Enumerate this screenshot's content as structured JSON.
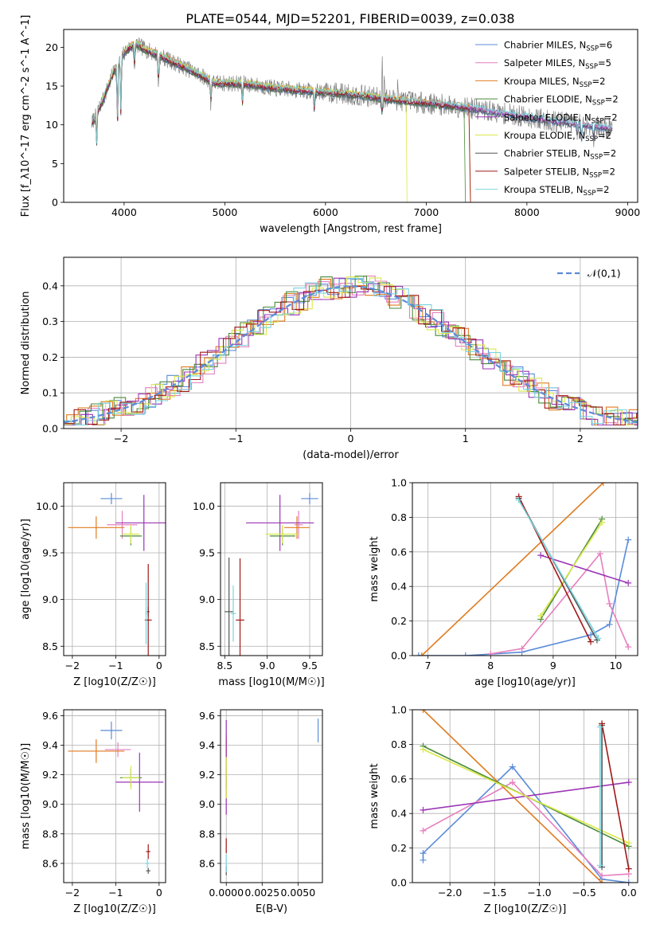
{
  "chart_data": [
    {
      "id": "spectrum",
      "type": "line",
      "title": "PLATE=0544, MJD=52201, FIBERID=0039, z=0.038",
      "xlabel": "wavelength [Angstrom, rest frame]",
      "ylabel": "Flux [f_λ10^-17 erg cm^-2 s^-1 A^-1]",
      "xlim": [
        3400,
        9100
      ],
      "ylim": [
        0,
        22.3
      ],
      "xticks": [
        4000,
        5000,
        6000,
        7000,
        8000,
        9000
      ],
      "yticks": [
        0,
        5,
        10,
        15,
        20
      ],
      "grid": false,
      "legend_placement": "top-right",
      "legend": [
        {
          "name": "Chabrier MILES",
          "nssp": "6",
          "color": "#5b8bd8"
        },
        {
          "name": "Salpeter MILES",
          "nssp": "5",
          "color": "#e67fbf"
        },
        {
          "name": "Kroupa MILES",
          "nssp": "2",
          "color": "#e07b20"
        },
        {
          "name": "Chabrier ELODIE",
          "nssp": "2",
          "color": "#4a8a3a"
        },
        {
          "name": "Salpeter ELODIE",
          "nssp": "2",
          "color": "#9b35b5"
        },
        {
          "name": "Kroupa ELODIE",
          "nssp": "2",
          "color": "#d9e84a"
        },
        {
          "name": "Chabrier STELIB",
          "nssp": "2",
          "color": "#555555"
        },
        {
          "name": "Salpeter STELIB",
          "nssp": "2",
          "color": "#a01818"
        },
        {
          "name": "Kroupa STELIB",
          "nssp": "2",
          "color": "#79d4dd"
        }
      ],
      "data_color": "#808080",
      "continuum": {
        "x": [
          3680,
          3800,
          3900,
          4000,
          4100,
          4200,
          4300,
          4500,
          4700,
          4900,
          5200,
          5500,
          5800,
          6100,
          6400,
          6700,
          7000,
          7300,
          7600,
          7900,
          8200,
          8500,
          8850
        ],
        "y": [
          10.2,
          13.5,
          17.0,
          19.3,
          20.5,
          19.8,
          19.2,
          18.0,
          16.8,
          15.4,
          15.3,
          14.7,
          14.4,
          14.1,
          13.7,
          13.2,
          12.8,
          12.4,
          11.8,
          11.2,
          10.6,
          10.1,
          9.5
        ]
      }
    },
    {
      "id": "residuals",
      "type": "histogram",
      "xlabel": "(data-model)/error",
      "ylabel": "Normed distribution",
      "xlim": [
        -2.5,
        2.5
      ],
      "ylim": [
        0,
        0.48
      ],
      "xticks": [
        -2,
        -1,
        0,
        1,
        2
      ],
      "yticks": [
        0.0,
        0.1,
        0.2,
        0.3,
        0.4
      ],
      "grid": true,
      "legend_placement": "top-right",
      "reference": {
        "label": "𝒩(0,1)",
        "mean": 0,
        "sigma": 1,
        "color": "#5b8bd8"
      }
    },
    {
      "id": "age_vs_Z",
      "type": "errorbar",
      "xlabel": "Z [log10(Z/Z☉)]",
      "ylabel": "age [log10(age/yr)]",
      "xlim": [
        -2.2,
        0.15
      ],
      "ylim": [
        8.4,
        10.25
      ],
      "xticks": [
        -2,
        -1,
        0
      ],
      "yticks": [
        8.5,
        9.0,
        9.5,
        10.0
      ],
      "grid": true,
      "points": [
        {
          "model": "Chabrier MILES",
          "x": -1.1,
          "y": 10.08,
          "xerr": 0.25,
          "yerr": 0.06
        },
        {
          "model": "Salpeter MILES",
          "x": -0.85,
          "y": 9.8,
          "xerr": 0.35,
          "yerr": 0.15
        },
        {
          "model": "Kroupa MILES",
          "x": -1.45,
          "y": 9.77,
          "xerr": 0.65,
          "yerr": 0.12
        },
        {
          "model": "Chabrier ELODIE",
          "x": -0.65,
          "y": 9.68,
          "xerr": 0.25,
          "yerr": 0.1
        },
        {
          "model": "Salpeter ELODIE",
          "x": -0.35,
          "y": 9.82,
          "xerr": 0.65,
          "yerr": 0.3
        },
        {
          "model": "Kroupa ELODIE",
          "x": -0.65,
          "y": 9.7,
          "xerr": 0.2,
          "yerr": 0.1
        },
        {
          "model": "Chabrier STELIB",
          "x": -0.25,
          "y": 8.87,
          "xerr": 0.03,
          "yerr": 0.05
        },
        {
          "model": "Salpeter STELIB",
          "x": -0.25,
          "y": 8.78,
          "xerr": 0.08,
          "yerr": 0.6
        },
        {
          "model": "Kroupa STELIB",
          "x": -0.3,
          "y": 8.85,
          "xerr": 0.02,
          "yerr": 0.33
        }
      ]
    },
    {
      "id": "age_vs_mass",
      "type": "errorbar",
      "xlabel": "mass [log10(M/M☉)]",
      "ylabel": "",
      "xlim": [
        8.45,
        9.65
      ],
      "ylim": [
        8.4,
        10.25
      ],
      "xticks": [
        8.5,
        9.0,
        9.5
      ],
      "yticks": [
        8.5,
        9.0,
        9.5,
        10.0
      ],
      "grid": true,
      "points": [
        {
          "model": "Chabrier MILES",
          "x": 9.5,
          "y": 10.08,
          "xerr": 0.1,
          "yerr": 0.06
        },
        {
          "model": "Salpeter MILES",
          "x": 9.37,
          "y": 9.8,
          "xerr": 0.05,
          "yerr": 0.15
        },
        {
          "model": "Kroupa MILES",
          "x": 9.35,
          "y": 9.77,
          "xerr": 0.15,
          "yerr": 0.12
        },
        {
          "model": "Chabrier ELODIE",
          "x": 9.18,
          "y": 9.68,
          "xerr": 0.15,
          "yerr": 0.1
        },
        {
          "model": "Salpeter ELODIE",
          "x": 9.15,
          "y": 9.82,
          "xerr": 0.4,
          "yerr": 0.3
        },
        {
          "model": "Kroupa ELODIE",
          "x": 9.18,
          "y": 9.7,
          "xerr": 0.2,
          "yerr": 0.1
        },
        {
          "model": "Chabrier STELIB",
          "x": 8.55,
          "y": 8.87,
          "xerr": 0.05,
          "yerr": 0.58
        },
        {
          "model": "Salpeter STELIB",
          "x": 8.68,
          "y": 8.78,
          "xerr": 0.05,
          "yerr": 0.66
        },
        {
          "model": "Kroupa STELIB",
          "x": 8.6,
          "y": 8.85,
          "xerr": 0.03,
          "yerr": 0.3
        }
      ]
    },
    {
      "id": "weight_vs_age",
      "type": "line",
      "xlabel": "age [log10(age/yr)]",
      "ylabel": "mass weight",
      "xlim": [
        6.75,
        10.35
      ],
      "ylim": [
        0,
        1.0
      ],
      "xticks": [
        7,
        8,
        9,
        10
      ],
      "yticks": [
        0.0,
        0.2,
        0.4,
        0.6,
        0.8,
        1.0
      ],
      "grid": true,
      "series": [
        {
          "model": "Chabrier MILES",
          "x": [
            6.85,
            7.6,
            8.5,
            9.6,
            9.9,
            10.2
          ],
          "y": [
            0.0,
            0.0,
            0.02,
            0.12,
            0.18,
            0.67
          ]
        },
        {
          "model": "Salpeter MILES",
          "x": [
            8.0,
            8.5,
            9.75,
            9.9,
            10.2
          ],
          "y": [
            0.01,
            0.04,
            0.59,
            0.3,
            0.05
          ]
        },
        {
          "model": "Kroupa MILES",
          "x": [
            6.9,
            9.8
          ],
          "y": [
            0.0,
            1.0
          ]
        },
        {
          "model": "Chabrier ELODIE",
          "x": [
            8.8,
            9.78
          ],
          "y": [
            0.21,
            0.79
          ]
        },
        {
          "model": "Salpeter ELODIE",
          "x": [
            8.8,
            10.2
          ],
          "y": [
            0.58,
            0.42
          ]
        },
        {
          "model": "Kroupa ELODIE",
          "x": [
            8.8,
            9.78
          ],
          "y": [
            0.23,
            0.77
          ]
        },
        {
          "model": "Chabrier STELIB",
          "x": [
            8.45,
            9.7
          ],
          "y": [
            0.91,
            0.09
          ]
        },
        {
          "model": "Salpeter STELIB",
          "x": [
            8.45,
            9.6
          ],
          "y": [
            0.92,
            0.08
          ]
        },
        {
          "model": "Kroupa STELIB",
          "x": [
            8.45,
            9.72
          ],
          "y": [
            0.9,
            0.1
          ]
        }
      ]
    },
    {
      "id": "mass_vs_Z",
      "type": "errorbar",
      "xlabel": "Z [log10(Z/Z☉)]",
      "ylabel": "mass [log10(M/M☉)]",
      "xlim": [
        -2.2,
        0.15
      ],
      "ylim": [
        8.47,
        9.64
      ],
      "xticks": [
        -2,
        -1,
        0
      ],
      "yticks": [
        8.6,
        8.8,
        9.0,
        9.2,
        9.4,
        9.6
      ],
      "grid": true,
      "points": [
        {
          "model": "Chabrier MILES",
          "x": -1.1,
          "y": 9.5,
          "xerr": 0.25,
          "yerr": 0.06
        },
        {
          "model": "Salpeter MILES",
          "x": -0.95,
          "y": 9.37,
          "xerr": 0.3,
          "yerr": 0.05
        },
        {
          "model": "Kroupa MILES",
          "x": -1.45,
          "y": 9.36,
          "xerr": 0.65,
          "yerr": 0.08
        },
        {
          "model": "Chabrier ELODIE",
          "x": -0.65,
          "y": 9.18,
          "xerr": 0.25,
          "yerr": 0.06
        },
        {
          "model": "Salpeter ELODIE",
          "x": -0.45,
          "y": 9.15,
          "xerr": 0.55,
          "yerr": 0.2
        },
        {
          "model": "Kroupa ELODIE",
          "x": -0.65,
          "y": 9.18,
          "xerr": 0.2,
          "yerr": 0.08
        },
        {
          "model": "Chabrier STELIB",
          "x": -0.25,
          "y": 8.55,
          "xerr": 0.05,
          "yerr": 0.02
        },
        {
          "model": "Salpeter STELIB",
          "x": -0.25,
          "y": 8.68,
          "xerr": 0.05,
          "yerr": 0.05
        },
        {
          "model": "Kroupa STELIB",
          "x": -0.27,
          "y": 8.6,
          "xerr": 0.05,
          "yerr": 0.03
        }
      ]
    },
    {
      "id": "mass_vs_ebv",
      "type": "errorbar",
      "xlabel": "E(B-V)",
      "ylabel": "",
      "xlim": [
        -0.0004,
        0.0067
      ],
      "ylim": [
        8.47,
        9.64
      ],
      "xticks": [
        0.0,
        0.0025,
        0.005
      ],
      "xticklabels": [
        "0.0000",
        "0.0025",
        "0.0050"
      ],
      "yticks": [
        8.6,
        8.8,
        9.0,
        9.2,
        9.4,
        9.6
      ],
      "grid": true,
      "points": [
        {
          "model": "Chabrier MILES",
          "x": 0.0064,
          "y": 9.5,
          "xerr": 0,
          "yerr": 0.08
        },
        {
          "model": "Salpeter MILES",
          "x": 0.0,
          "y": 9.37,
          "xerr": 0,
          "yerr": 0.1
        },
        {
          "model": "Kroupa MILES",
          "x": 0.0,
          "y": 9.36,
          "xerr": 0,
          "yerr": 0.08
        },
        {
          "model": "Chabrier ELODIE",
          "x": 0.0,
          "y": 9.18,
          "xerr": 0,
          "yerr": 0.08
        },
        {
          "model": "Salpeter ELODIE",
          "x": 0.0,
          "y": 9.25,
          "xerr": 0,
          "yerr": 0.32
        },
        {
          "model": "Kroupa ELODIE",
          "x": 0.0,
          "y": 9.18,
          "xerr": 0,
          "yerr": 0.14
        },
        {
          "model": "Chabrier STELIB",
          "x": 0.0,
          "y": 8.55,
          "xerr": 0,
          "yerr": 0.03
        },
        {
          "model": "Salpeter STELIB",
          "x": 0.0,
          "y": 8.72,
          "xerr": 0,
          "yerr": 0.05
        },
        {
          "model": "Kroupa STELIB",
          "x": 0.0,
          "y": 8.6,
          "xerr": 0,
          "yerr": 0.06
        }
      ]
    },
    {
      "id": "weight_vs_Z",
      "type": "line",
      "xlabel": "Z [log10(Z/Z☉)]",
      "ylabel": "mass weight",
      "xlim": [
        -2.42,
        0.1
      ],
      "ylim": [
        0,
        1.0
      ],
      "xticks": [
        -2.0,
        -1.5,
        -1.0,
        -0.5,
        0.0
      ],
      "yticks": [
        0.0,
        0.2,
        0.4,
        0.6,
        0.8,
        1.0
      ],
      "grid": true,
      "series": [
        {
          "model": "Chabrier MILES",
          "x": [
            -2.3,
            -2.3,
            -1.3,
            -0.3,
            0.0
          ],
          "y": [
            0.13,
            0.17,
            0.67,
            0.02,
            0.0
          ]
        },
        {
          "model": "Salpeter MILES",
          "x": [
            -2.3,
            -1.3,
            -0.3,
            0.0
          ],
          "y": [
            0.3,
            0.58,
            0.04,
            0.05
          ]
        },
        {
          "model": "Kroupa MILES",
          "x": [
            -2.3,
            -0.3
          ],
          "y": [
            1.0,
            0.0
          ]
        },
        {
          "model": "Chabrier ELODIE",
          "x": [
            -2.3,
            0.0
          ],
          "y": [
            0.79,
            0.21
          ]
        },
        {
          "model": "Salpeter ELODIE",
          "x": [
            -2.3,
            0.0
          ],
          "y": [
            0.42,
            0.58
          ]
        },
        {
          "model": "Kroupa ELODIE",
          "x": [
            -2.3,
            0.0
          ],
          "y": [
            0.77,
            0.23
          ]
        },
        {
          "model": "Chabrier STELIB",
          "x": [
            -0.3,
            -0.3
          ],
          "y": [
            0.91,
            0.09
          ]
        },
        {
          "model": "Salpeter STELIB",
          "x": [
            -0.3,
            0.0
          ],
          "y": [
            0.92,
            0.08
          ]
        },
        {
          "model": "Kroupa STELIB",
          "x": [
            -0.32,
            -0.32
          ],
          "y": [
            0.9,
            0.1
          ]
        }
      ]
    }
  ]
}
